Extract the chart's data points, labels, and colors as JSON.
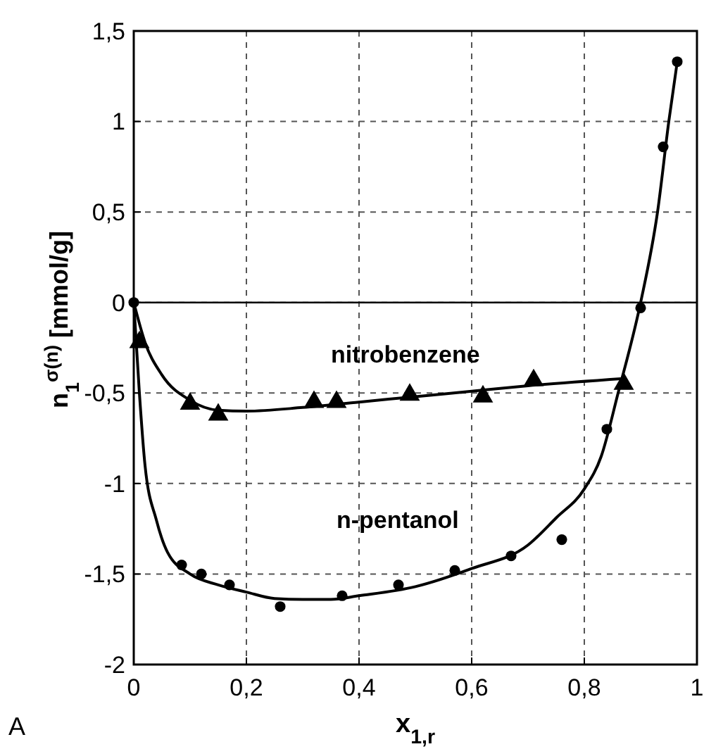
{
  "chart_data": {
    "type": "scatter",
    "xlabel": "x$_{1,r}$",
    "ylabel": "n$_{1}$$^{σ(n)}$ [mmol/g]",
    "xlim": [
      0,
      1
    ],
    "ylim": [
      -2,
      1.5
    ],
    "xticks": [
      0,
      {
        "value": 0.2,
        "label": "0,2"
      },
      {
        "value": 0.4,
        "label": "0,4"
      },
      {
        "value": 0.6,
        "label": "0,6"
      },
      {
        "value": 0.8,
        "label": "0,8"
      },
      1
    ],
    "yticks": [
      -2,
      {
        "value": -1.5,
        "label": "-1,5"
      },
      -1,
      {
        "value": -0.5,
        "label": "-0,5"
      },
      0,
      {
        "value": 0.5,
        "label": "0,5"
      },
      1,
      {
        "value": 1.5,
        "label": "1,5"
      }
    ],
    "grid": true,
    "ref_lines": [
      {
        "axis": "y",
        "value": 0,
        "color": "#000000",
        "line_style": "solid"
      }
    ],
    "annotations": [
      "A"
    ],
    "series": [
      {
        "name": "nitrobenzene",
        "type": "scatter",
        "marker": "triangle",
        "color": "#000000",
        "x": [
          0.01,
          0.1,
          0.15,
          0.32,
          0.36,
          0.49,
          0.62,
          0.71,
          0.87
        ],
        "values": [
          -0.22,
          -0.56,
          -0.62,
          -0.55,
          -0.55,
          -0.51,
          -0.52,
          -0.43,
          -0.45
        ]
      },
      {
        "name": "n-pentanol",
        "type": "scatter",
        "marker": "circle",
        "color": "#000000",
        "x": [
          0,
          0.085,
          0.12,
          0.17,
          0.26,
          0.37,
          0.47,
          0.57,
          0.67,
          0.76,
          0.84,
          0.9,
          0.94,
          0.965
        ],
        "values": [
          0,
          -1.45,
          -1.5,
          -1.56,
          -1.68,
          -1.62,
          -1.56,
          -1.48,
          -1.4,
          -1.31,
          -0.7,
          -0.03,
          0.86,
          1.33
        ]
      },
      {
        "type": "line",
        "marker": "none",
        "line_style": "solid",
        "color": "#000000",
        "x": [
          0,
          0.02,
          0.05,
          0.1,
          0.15,
          0.2,
          0.3,
          0.4,
          0.5,
          0.6,
          0.7,
          0.87
        ],
        "values": [
          0,
          -0.22,
          -0.4,
          -0.54,
          -0.595,
          -0.6,
          -0.58,
          -0.55,
          -0.52,
          -0.49,
          -0.46,
          -0.42
        ]
      },
      {
        "type": "line",
        "marker": "none",
        "line_style": "solid",
        "color": "#000000",
        "x": [
          0,
          0.01,
          0.02,
          0.04,
          0.06,
          0.1,
          0.15,
          0.2,
          0.25,
          0.3,
          0.35,
          0.4,
          0.5,
          0.6,
          0.7,
          0.75,
          0.8,
          0.83,
          0.86,
          0.9,
          0.93,
          0.95,
          0.965
        ],
        "values": [
          0,
          -0.5,
          -0.9,
          -1.2,
          -1.38,
          -1.5,
          -1.56,
          -1.6,
          -1.635,
          -1.64,
          -1.64,
          -1.62,
          -1.57,
          -1.47,
          -1.34,
          -1.19,
          -1.03,
          -0.85,
          -0.5,
          0,
          0.5,
          1.0,
          1.33
        ]
      }
    ]
  }
}
